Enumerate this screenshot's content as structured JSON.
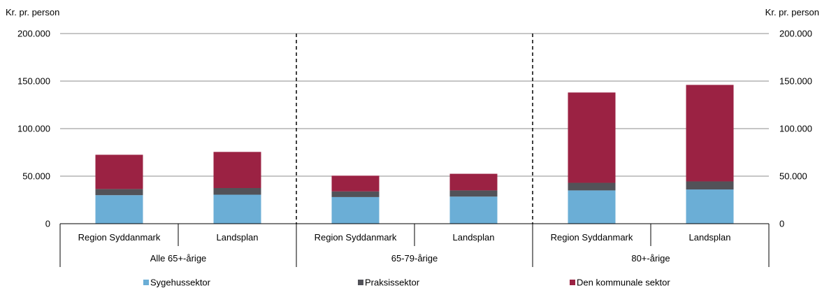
{
  "chart_data": {
    "type": "bar",
    "stacked": true,
    "y_axis_title_left": "Kr. pr. person",
    "y_axis_title_right": "Kr. pr. person",
    "ylim": [
      0,
      200000
    ],
    "y_ticks": [
      {
        "value": 0,
        "label": "0"
      },
      {
        "value": 50000,
        "label": "50.000"
      },
      {
        "value": 100000,
        "label": "100.000"
      },
      {
        "value": 150000,
        "label": "150.000"
      },
      {
        "value": 200000,
        "label": "200.000"
      }
    ],
    "groups": [
      {
        "label": "Alle 65+-årige",
        "categories": [
          "Region Syddanmark",
          "Landsplan"
        ]
      },
      {
        "label": "65-79-årige",
        "categories": [
          "Region Syddanmark",
          "Landsplan"
        ]
      },
      {
        "label": "80+-årige",
        "categories": [
          "Region Syddanmark",
          "Landsplan"
        ]
      }
    ],
    "series": [
      {
        "name": "Sygehussektor",
        "color": "#6BAED6",
        "values": [
          30000,
          30500,
          28000,
          28500,
          35000,
          36000
        ]
      },
      {
        "name": "Praksissektor",
        "color": "#525258",
        "values": [
          6500,
          7000,
          6000,
          6500,
          8000,
          8500
        ]
      },
      {
        "name": "Den kommunale sektor",
        "color": "#9B2243",
        "values": [
          36000,
          38000,
          16500,
          17500,
          95000,
          101500
        ]
      }
    ],
    "grid": true,
    "legend_position": "bottom"
  }
}
